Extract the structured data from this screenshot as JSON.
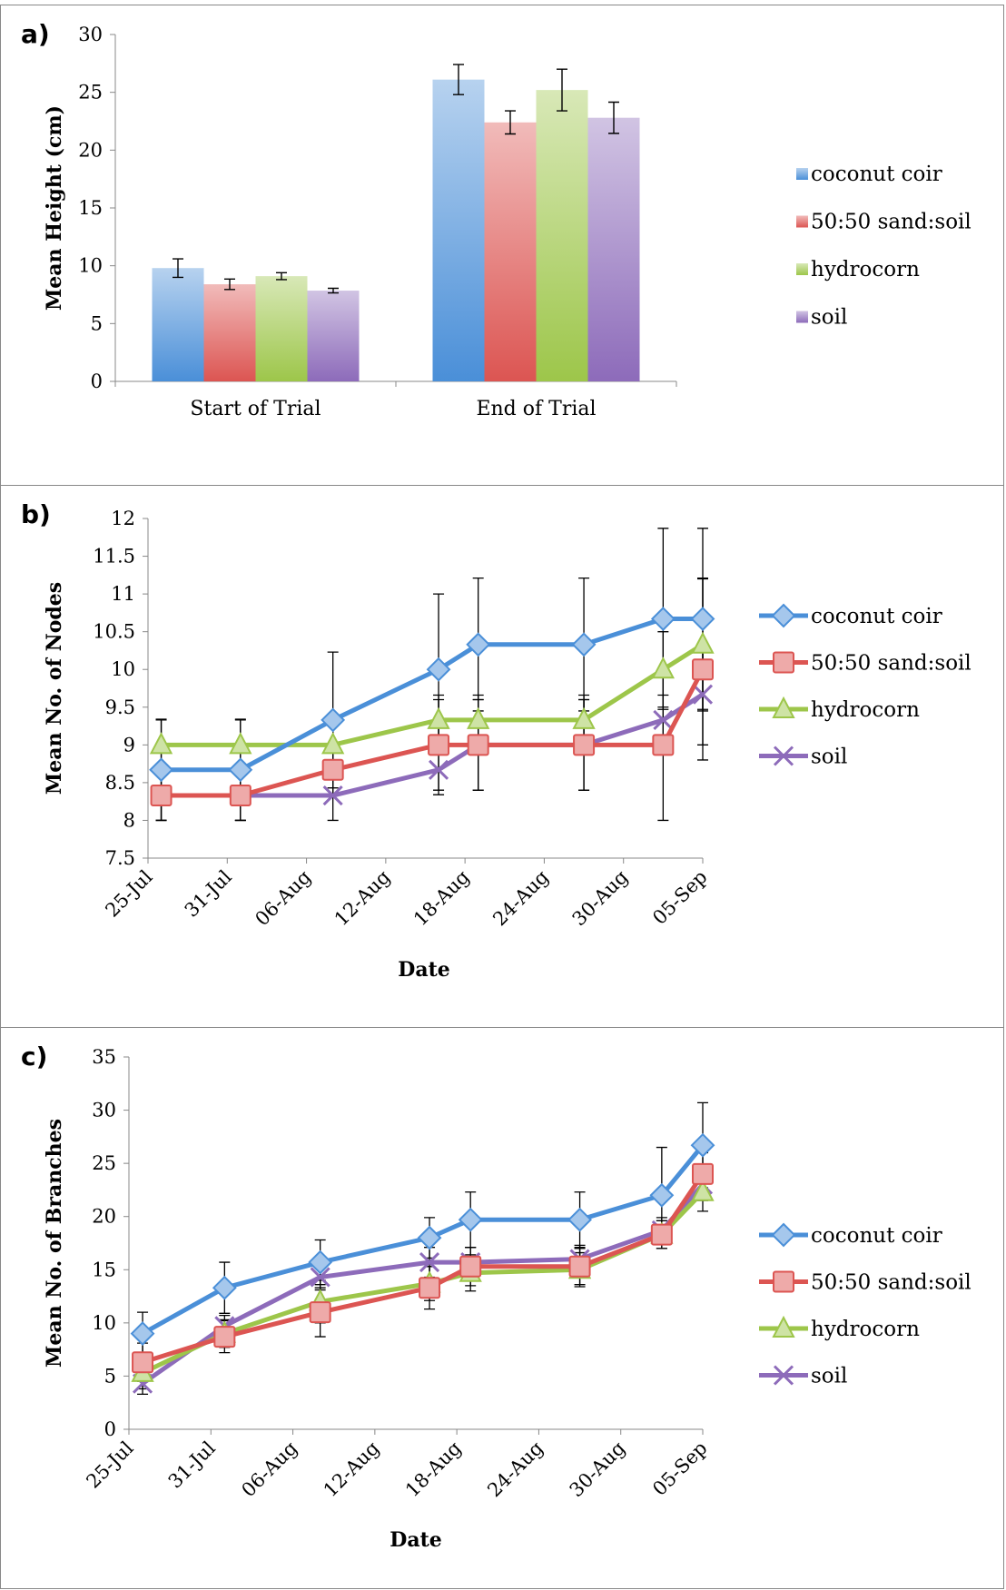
{
  "panels": [
    {
      "label": "a)"
    },
    {
      "label": "b)"
    },
    {
      "label": "c)"
    }
  ],
  "colors": {
    "coconut coir": "#4a8fd8",
    "50:50 sand:soil": "#dc5552",
    "hydrocorn": "#9dc64a",
    "soil": "#8d6bba"
  },
  "chart_data": [
    {
      "type": "bar",
      "title": "",
      "xlabel": "",
      "ylabel": "Mean Height (cm)",
      "ylim": [
        0,
        30
      ],
      "yticks": [
        0,
        5,
        10,
        15,
        20,
        25,
        30
      ],
      "categories": [
        "Start of Trial",
        "End of Trial"
      ],
      "legend_position": "right",
      "series": [
        {
          "name": "coconut coir",
          "values": [
            9.8,
            26.1
          ],
          "errors": [
            0.8,
            1.3
          ]
        },
        {
          "name": "50:50 sand:soil",
          "values": [
            8.4,
            22.4
          ],
          "errors": [
            0.45,
            1.0
          ]
        },
        {
          "name": "hydrocorn",
          "values": [
            9.1,
            25.2
          ],
          "errors": [
            0.3,
            1.8
          ]
        },
        {
          "name": "soil",
          "values": [
            7.85,
            22.8
          ],
          "errors": [
            0.2,
            1.35
          ]
        }
      ]
    },
    {
      "type": "line",
      "title": "",
      "xlabel": "Date",
      "ylabel": "Mean No. of Nodes",
      "ylim": [
        7.5,
        12
      ],
      "yticks": [
        7.5,
        8,
        8.5,
        9,
        9.5,
        10,
        10.5,
        11,
        11.5,
        12
      ],
      "ytick_labels": [
        "7.5",
        "8",
        "8.5",
        "9",
        "9.5",
        "10",
        "10.5",
        "11",
        "11.5",
        "12"
      ],
      "x_tick_labels": [
        "25-Jul",
        "31-Jul",
        "06-Aug",
        "12-Aug",
        "18-Aug",
        "24-Aug",
        "30-Aug",
        "05-Sep"
      ],
      "x_tick_dates": [
        "2014-07-25",
        "2014-07-31",
        "2014-08-06",
        "2014-08-12",
        "2014-08-18",
        "2014-08-24",
        "2014-08-30",
        "2014-09-05"
      ],
      "x": [
        "2014-07-26",
        "2014-08-01",
        "2014-08-08",
        "2014-08-16",
        "2014-08-19",
        "2014-08-27",
        "2014-09-02",
        "2014-09-05"
      ],
      "legend_position": "right",
      "series": [
        {
          "name": "coconut coir",
          "marker": "diamond",
          "values": [
            8.67,
            8.67,
            9.33,
            10.0,
            10.33,
            10.33,
            10.67,
            10.67
          ],
          "errors": [
            0.67,
            0.67,
            0.9,
            1.0,
            0.88,
            0.88,
            1.2,
            1.2
          ]
        },
        {
          "name": "50:50 sand:soil",
          "marker": "square",
          "values": [
            8.33,
            8.33,
            8.67,
            9.0,
            9.0,
            9.0,
            9.0,
            10.0
          ],
          "errors": [
            0.33,
            0.33,
            0.33,
            0.6,
            0.6,
            0.6,
            1.0,
            1.2
          ]
        },
        {
          "name": "hydrocorn",
          "marker": "triangle",
          "values": [
            9.0,
            9.0,
            9.0,
            9.33,
            9.33,
            9.33,
            10.0,
            10.33
          ],
          "errors": [
            0.33,
            0.33,
            0.33,
            0.33,
            0.33,
            0.33,
            0.5,
            0.88
          ]
        },
        {
          "name": "soil",
          "marker": "x",
          "values": [
            8.33,
            8.33,
            8.33,
            8.67,
            9.0,
            9.0,
            9.33,
            9.67
          ],
          "errors": [
            0.33,
            0.33,
            0.33,
            0.33,
            0.6,
            0.6,
            0.33,
            0.67
          ]
        }
      ]
    },
    {
      "type": "line",
      "title": "",
      "xlabel": "Date",
      "ylabel": "Mean No. of Branches",
      "ylim": [
        0,
        35
      ],
      "yticks": [
        0,
        5,
        10,
        15,
        20,
        25,
        30,
        35
      ],
      "ytick_labels": [
        "0",
        "5",
        "10",
        "15",
        "20",
        "25",
        "30",
        "35"
      ],
      "x_tick_labels": [
        "25-Jul",
        "31-Jul",
        "06-Aug",
        "12-Aug",
        "18-Aug",
        "24-Aug",
        "30-Aug",
        "05-Sep"
      ],
      "x_tick_dates": [
        "2014-07-25",
        "2014-07-31",
        "2014-08-06",
        "2014-08-12",
        "2014-08-18",
        "2014-08-24",
        "2014-08-30",
        "2014-09-05"
      ],
      "x": [
        "2014-07-26",
        "2014-08-01",
        "2014-08-08",
        "2014-08-16",
        "2014-08-19",
        "2014-08-27",
        "2014-09-02",
        "2014-09-05"
      ],
      "legend_position": "right",
      "series": [
        {
          "name": "coconut coir",
          "marker": "diamond",
          "values": [
            9.0,
            13.3,
            15.7,
            18.0,
            19.7,
            19.7,
            22.0,
            26.7
          ],
          "errors": [
            2.0,
            2.4,
            2.1,
            1.9,
            2.6,
            2.6,
            4.5,
            4.0
          ]
        },
        {
          "name": "50:50 sand:soil",
          "marker": "square",
          "values": [
            6.3,
            8.7,
            11.0,
            13.3,
            15.3,
            15.3,
            18.3,
            24.0
          ],
          "errors": [
            1.8,
            1.5,
            2.3,
            2.0,
            1.8,
            1.7,
            1.3,
            2.0
          ]
        },
        {
          "name": "hydrocorn",
          "marker": "triangle",
          "values": [
            5.3,
            9.0,
            12.0,
            13.7,
            14.7,
            15.0,
            18.3,
            22.3
          ],
          "errors": [
            1.5,
            1.3,
            2.0,
            1.6,
            1.7,
            1.6,
            1.3,
            1.8
          ]
        },
        {
          "name": "soil",
          "marker": "x",
          "values": [
            4.3,
            9.7,
            14.3,
            15.7,
            15.7,
            16.0,
            18.7,
            23.0
          ],
          "errors": [
            1.0,
            1.0,
            1.2,
            1.4,
            1.4,
            1.3,
            1.2,
            1.5
          ]
        }
      ]
    }
  ]
}
